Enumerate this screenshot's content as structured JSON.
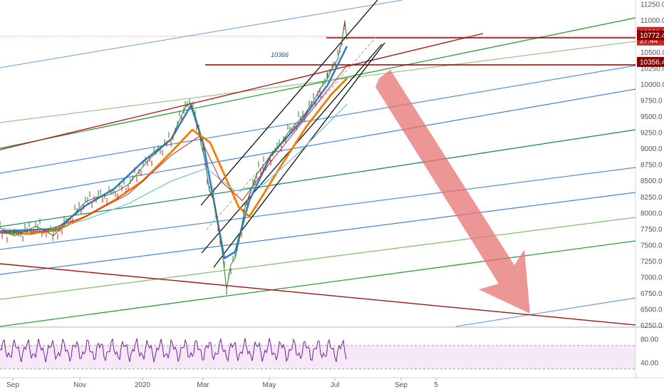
{
  "chart_data": {
    "type": "line",
    "title": "",
    "price_axis": {
      "ticks": [
        6250,
        6500,
        6750,
        7000,
        7250,
        7500,
        7750,
        8000,
        8250,
        8500,
        8750,
        9000,
        9250,
        9500,
        9750,
        10000,
        10250,
        10500,
        10750,
        11000,
        11250
      ],
      "tick_labels": [
        "6250.0",
        "6500.0",
        "6750.0",
        "7000.0",
        "7250.0",
        "7500.0",
        "7750.0",
        "8000.0",
        "8250.0",
        "8500.0",
        "8750.0",
        "9000.0",
        "9250.0",
        "9500.0",
        "9750.0",
        "10000.0",
        "10250.0",
        "10500.0",
        "10750.0",
        "11000.0",
        "11250.0"
      ],
      "range": [
        6240,
        11320
      ]
    },
    "time_axis": {
      "labels": [
        "Sep",
        "Nov",
        "2020",
        "Mar",
        "May",
        "Jul",
        "Sep",
        "5"
      ]
    },
    "rsi_axis": {
      "ticks": [
        80,
        40
      ],
      "tick_labels": [
        "80.00",
        "40.00"
      ],
      "range": [
        20,
        100
      ],
      "band": [
        30,
        70
      ]
    },
    "price_tags": [
      {
        "label": "10823.2",
        "value": 10823.2,
        "color": "#c62828"
      },
      {
        "label": "27:44",
        "value": 10690,
        "color": "#c62828"
      },
      {
        "label": "10772.4",
        "value": 10772.4,
        "color": "#8b0000"
      },
      {
        "label": "10356.4",
        "value": 10356.4,
        "color": "#8b0000"
      }
    ],
    "annotations": [
      {
        "text": "10366",
        "value": 10366
      }
    ],
    "price_series": {
      "name": "",
      "color": "#2e7d32",
      "points": [
        [
          0,
          7780
        ],
        [
          10,
          7700
        ],
        [
          20,
          7650
        ],
        [
          35,
          7720
        ],
        [
          50,
          7800
        ],
        [
          65,
          7720
        ],
        [
          75,
          7650
        ],
        [
          90,
          7820
        ],
        [
          105,
          8000
        ],
        [
          120,
          8180
        ],
        [
          135,
          8250
        ],
        [
          150,
          8280
        ],
        [
          165,
          8350
        ],
        [
          180,
          8450
        ],
        [
          195,
          8650
        ],
        [
          210,
          8850
        ],
        [
          225,
          9000
        ],
        [
          240,
          9150
        ],
        [
          252,
          9450
        ],
        [
          260,
          9650
        ],
        [
          268,
          9720
        ],
        [
          276,
          9450
        ],
        [
          282,
          9100
        ],
        [
          288,
          8800
        ],
        [
          294,
          8350
        ],
        [
          300,
          8250
        ],
        [
          306,
          7800
        ],
        [
          312,
          7400
        ],
        [
          318,
          6820
        ],
        [
          324,
          7200
        ],
        [
          330,
          7300
        ],
        [
          336,
          7600
        ],
        [
          344,
          8100
        ],
        [
          352,
          8350
        ],
        [
          360,
          8600
        ],
        [
          370,
          8750
        ],
        [
          380,
          8900
        ],
        [
          392,
          9050
        ],
        [
          404,
          9250
        ],
        [
          416,
          9400
        ],
        [
          428,
          9550
        ],
        [
          440,
          9750
        ],
        [
          450,
          9950
        ],
        [
          460,
          10100
        ],
        [
          468,
          10300
        ],
        [
          474,
          10400
        ],
        [
          480,
          10700
        ],
        [
          484,
          11000
        ],
        [
          487,
          10700
        ]
      ]
    },
    "moving_averages": [
      {
        "name": "",
        "color": "#2f7fd1",
        "width": 2.6,
        "points": [
          [
            0,
            7720
          ],
          [
            40,
            7740
          ],
          [
            80,
            7760
          ],
          [
            120,
            8120
          ],
          [
            160,
            8380
          ],
          [
            200,
            8800
          ],
          [
            240,
            9150
          ],
          [
            268,
            9680
          ],
          [
            285,
            9100
          ],
          [
            300,
            8200
          ],
          [
            315,
            7300
          ],
          [
            330,
            7400
          ],
          [
            350,
            8200
          ],
          [
            380,
            8900
          ],
          [
            420,
            9400
          ],
          [
            460,
            10000
          ],
          [
            487,
            10600
          ]
        ]
      },
      {
        "name": "",
        "color": "#f57c00",
        "width": 2.8,
        "points": [
          [
            0,
            7700
          ],
          [
            40,
            7680
          ],
          [
            80,
            7740
          ],
          [
            120,
            7950
          ],
          [
            160,
            8200
          ],
          [
            200,
            8500
          ],
          [
            240,
            8950
          ],
          [
            270,
            9300
          ],
          [
            295,
            9100
          ],
          [
            315,
            8600
          ],
          [
            335,
            8100
          ],
          [
            350,
            7950
          ],
          [
            370,
            8300
          ],
          [
            395,
            8750
          ],
          [
            430,
            9350
          ],
          [
            465,
            9850
          ],
          [
            487,
            10100
          ]
        ]
      },
      {
        "name": "",
        "color": "#6fc3d9",
        "width": 1.2,
        "points": [
          [
            0,
            7700
          ],
          [
            60,
            7720
          ],
          [
            120,
            7900
          ],
          [
            180,
            8150
          ],
          [
            240,
            8500
          ],
          [
            290,
            8700
          ],
          [
            330,
            8350
          ],
          [
            370,
            8450
          ],
          [
            420,
            8950
          ],
          [
            487,
            9700
          ]
        ]
      },
      {
        "name": "",
        "color": "#c62828",
        "width": 1,
        "points": [
          [
            0,
            7700
          ],
          [
            60,
            7720
          ],
          [
            120,
            7950
          ],
          [
            180,
            8300
          ],
          [
            240,
            8900
          ],
          [
            280,
            9200
          ],
          [
            310,
            8500
          ],
          [
            340,
            8200
          ],
          [
            380,
            8800
          ],
          [
            430,
            9500
          ],
          [
            487,
            10300
          ]
        ]
      }
    ],
    "rsi_series": {
      "name": "",
      "color": "#7b1fa2",
      "amplitude": 18,
      "mean": 62
    }
  }
}
